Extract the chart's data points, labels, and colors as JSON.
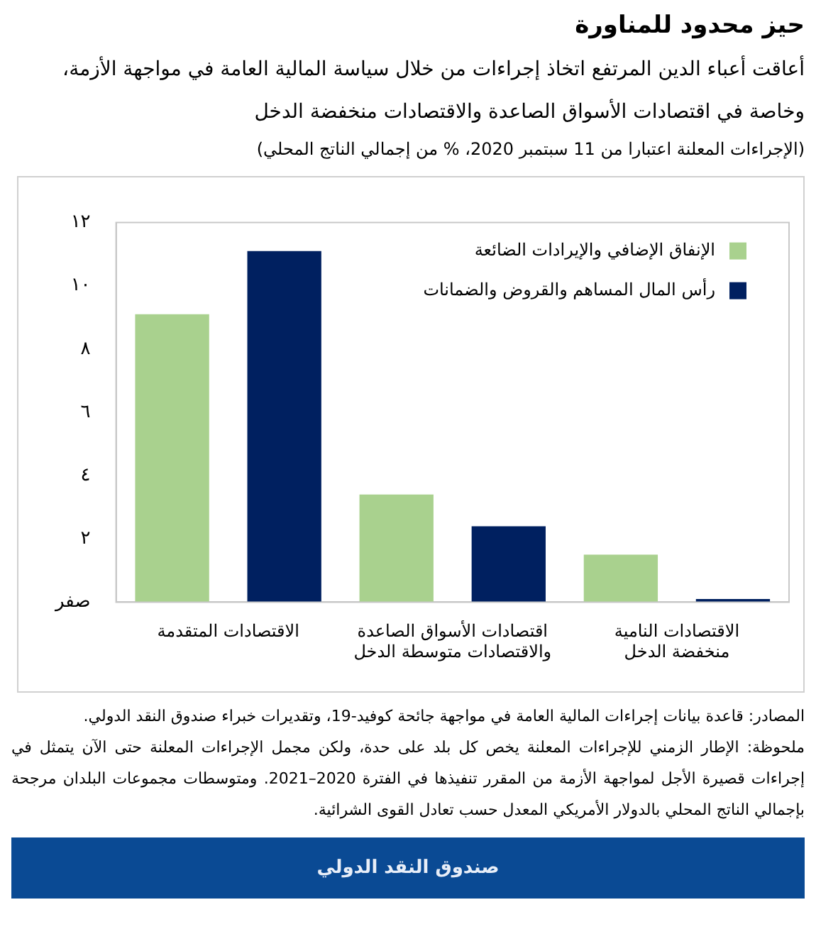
{
  "chart_data": {
    "type": "bar",
    "title": "حيز محدود للمناورة",
    "subtitle": "أعاقت أعباء الدين المرتفع اتخاذ إجراءات من خلال سياسة المالية العامة في مواجهة الأزمة، وخاصة في اقتصادات الأسواق الصاعدة والاقتصادات منخفضة الدخل",
    "categories": [
      "الاقتصادات المتقدمة",
      "اقتصادات الأسواق الصاعدة والاقتصادات متوسطة الدخل",
      "الاقتصادات النامية منخفضة الدخل"
    ],
    "series": [
      {
        "name": "الإنفاق الإضافي والإيرادات الضائعة",
        "color": "#a9d18e",
        "values": [
          9.1,
          3.4,
          1.5
        ]
      },
      {
        "name": "رأس المال المساهم والقروض والضمانات",
        "color": "#002060",
        "values": [
          11.1,
          2.4,
          0.1
        ]
      }
    ],
    "ylim": [
      0,
      12
    ],
    "yticks": [
      {
        "value": 0,
        "label": "صفر"
      },
      {
        "value": 2,
        "label": "٢"
      },
      {
        "value": 4,
        "label": "٤"
      },
      {
        "value": 6,
        "label": "٦"
      },
      {
        "value": 8,
        "label": "٨"
      },
      {
        "value": 10,
        "label": "١٠"
      },
      {
        "value": 12,
        "label": "١٢"
      }
    ],
    "grid": false,
    "legend": "top right",
    "annotations": [
      "(الإجراءات المعلنة اعتبارا من 11 سبتمبر 2020، % من إجمالي الناتج المحلي)",
      "المصادر: قاعدة بيانات إجراءات المالية العامة في مواجهة جائحة كوفيد-19، وتقديرات خبراء صندوق النقد الدولي.",
      "ملحوظة: الإطار الزمني للإجراءات المعلنة يخص كل بلد على حدة، ولكن مجمل الإجراءات المعلنة حتى الآن يتمثل في إجراءات قصيرة الأجل لمواجهة الأزمة من المقرر تنفيذها في الفترة 2020–2021. ومتوسطات مجموعات البلدان مرجحة بإجمالي الناتج المحلي بالدولار الأمريكي المعدل حسب تعادل القوى الشرائية.",
      "صندوق النقد الدولي"
    ]
  }
}
